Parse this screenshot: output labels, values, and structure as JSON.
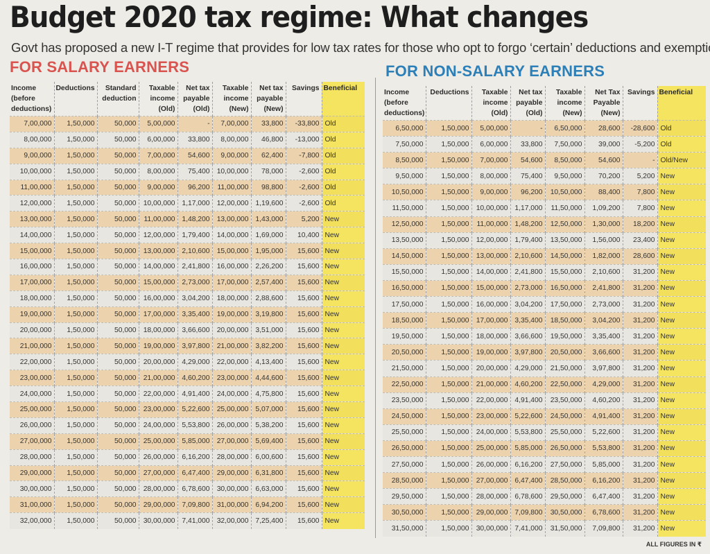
{
  "headline": "Budget 2020 tax regime: What changes",
  "subhead": "Govt has proposed a new I-T regime that provides for low tax rates for those who opt to forgo ‘certain’ deductions and exemptions",
  "salary": {
    "title": "FOR SALARY EARNERS",
    "headers": [
      "Income (before deductions)",
      "Deductions",
      "Standard deduction",
      "Taxable income (Old)",
      "Net tax payable (Old)",
      "Taxable income (New)",
      "Net tax payable (New)",
      "Savings",
      "Beneficial"
    ],
    "rows": [
      [
        "7,00,000",
        "1,50,000",
        "50,000",
        "5,00,000",
        "-",
        "7,00,000",
        "33,800",
        "-33,800",
        "Old"
      ],
      [
        "8,00,000",
        "1,50,000",
        "50,000",
        "6,00,000",
        "33,800",
        "8,00,000",
        "46,800",
        "-13,000",
        "Old"
      ],
      [
        "9,00,000",
        "1,50,000",
        "50,000",
        "7,00,000",
        "54,600",
        "9,00,000",
        "62,400",
        "-7,800",
        "Old"
      ],
      [
        "10,00,000",
        "1,50,000",
        "50,000",
        "8,00,000",
        "75,400",
        "10,00,000",
        "78,000",
        "-2,600",
        "Old"
      ],
      [
        "11,00,000",
        "1,50,000",
        "50,000",
        "9,00,000",
        "96,200",
        "11,00,000",
        "98,800",
        "-2,600",
        "Old"
      ],
      [
        "12,00,000",
        "1,50,000",
        "50,000",
        "10,00,000",
        "1,17,000",
        "12,00,000",
        "1,19,600",
        "-2,600",
        "Old"
      ],
      [
        "13,00,000",
        "1,50,000",
        "50,000",
        "11,00,000",
        "1,48,200",
        "13,00,000",
        "1,43,000",
        "5,200",
        "New"
      ],
      [
        "14,00,000",
        "1,50,000",
        "50,000",
        "12,00,000",
        "1,79,400",
        "14,00,000",
        "1,69,000",
        "10,400",
        "New"
      ],
      [
        "15,00,000",
        "1,50,000",
        "50,000",
        "13,00,000",
        "2,10,600",
        "15,00,000",
        "1,95,000",
        "15,600",
        "New"
      ],
      [
        "16,00,000",
        "1,50,000",
        "50,000",
        "14,00,000",
        "2,41,800",
        "16,00,000",
        "2,26,200",
        "15,600",
        "New"
      ],
      [
        "17,00,000",
        "1,50,000",
        "50,000",
        "15,00,000",
        "2,73,000",
        "17,00,000",
        "2,57,400",
        "15,600",
        "New"
      ],
      [
        "18,00,000",
        "1,50,000",
        "50,000",
        "16,00,000",
        "3,04,200",
        "18,00,000",
        "2,88,600",
        "15,600",
        "New"
      ],
      [
        "19,00,000",
        "1,50,000",
        "50,000",
        "17,00,000",
        "3,35,400",
        "19,00,000",
        "3,19,800",
        "15,600",
        "New"
      ],
      [
        "20,00,000",
        "1,50,000",
        "50,000",
        "18,00,000",
        "3,66,600",
        "20,00,000",
        "3,51,000",
        "15,600",
        "New"
      ],
      [
        "21,00,000",
        "1,50,000",
        "50,000",
        "19,00,000",
        "3,97,800",
        "21,00,000",
        "3,82,200",
        "15,600",
        "New"
      ],
      [
        "22,00,000",
        "1,50,000",
        "50,000",
        "20,00,000",
        "4,29,000",
        "22,00,000",
        "4,13,400",
        "15,600",
        "New"
      ],
      [
        "23,00,000",
        "1,50,000",
        "50,000",
        "21,00,000",
        "4,60,200",
        "23,00,000",
        "4,44,600",
        "15,600",
        "New"
      ],
      [
        "24,00,000",
        "1,50,000",
        "50,000",
        "22,00,000",
        "4,91,400",
        "24,00,000",
        "4,75,800",
        "15,600",
        "New"
      ],
      [
        "25,00,000",
        "1,50,000",
        "50,000",
        "23,00,000",
        "5,22,600",
        "25,00,000",
        "5,07,000",
        "15,600",
        "New"
      ],
      [
        "26,00,000",
        "1,50,000",
        "50,000",
        "24,00,000",
        "5,53,800",
        "26,00,000",
        "5,38,200",
        "15,600",
        "New"
      ],
      [
        "27,00,000",
        "1,50,000",
        "50,000",
        "25,00,000",
        "5,85,000",
        "27,00,000",
        "5,69,400",
        "15,600",
        "New"
      ],
      [
        "28,00,000",
        "1,50,000",
        "50,000",
        "26,00,000",
        "6,16,200",
        "28,00,000",
        "6,00,600",
        "15,600",
        "New"
      ],
      [
        "29,00,000",
        "1,50,000",
        "50,000",
        "27,00,000",
        "6,47,400",
        "29,00,000",
        "6,31,800",
        "15,600",
        "New"
      ],
      [
        "30,00,000",
        "1,50,000",
        "50,000",
        "28,00,000",
        "6,78,600",
        "30,00,000",
        "6,63,000",
        "15,600",
        "New"
      ],
      [
        "31,00,000",
        "1,50,000",
        "50,000",
        "29,00,000",
        "7,09,800",
        "31,00,000",
        "6,94,200",
        "15,600",
        "New"
      ],
      [
        "32,00,000",
        "1,50,000",
        "50,000",
        "30,00,000",
        "7,41,000",
        "32,00,000",
        "7,25,400",
        "15,600",
        "New"
      ]
    ]
  },
  "nonsalary": {
    "title": "FOR NON-SALARY EARNERS",
    "headers": [
      "Income (before deductions)",
      "Deductions",
      "Taxable income (Old)",
      "Net tax payable (Old)",
      "Taxable income (New)",
      "Net Tax Payable (New)",
      "Savings",
      "Beneficial"
    ],
    "rows": [
      [
        "6,50,000",
        "1,50,000",
        "5,00,000",
        "-",
        "6,50,000",
        "28,600",
        "-28,600",
        "Old"
      ],
      [
        "7,50,000",
        "1,50,000",
        "6,00,000",
        "33,800",
        "7,50,000",
        "39,000",
        "-5,200",
        "Old"
      ],
      [
        "8,50,000",
        "1,50,000",
        "7,00,000",
        "54,600",
        "8,50,000",
        "54,600",
        "-",
        "Old/New"
      ],
      [
        "9,50,000",
        "1,50,000",
        "8,00,000",
        "75,400",
        "9,50,000",
        "70,200",
        "5,200",
        "New"
      ],
      [
        "10,50,000",
        "1,50,000",
        "9,00,000",
        "96,200",
        "10,50,000",
        "88,400",
        "7,800",
        "New"
      ],
      [
        "11,50,000",
        "1,50,000",
        "10,00,000",
        "1,17,000",
        "11,50,000",
        "1,09,200",
        "7,800",
        "New"
      ],
      [
        "12,50,000",
        "1,50,000",
        "11,00,000",
        "1,48,200",
        "12,50,000",
        "1,30,000",
        "18,200",
        "New"
      ],
      [
        "13,50,000",
        "1,50,000",
        "12,00,000",
        "1,79,400",
        "13,50,000",
        "1,56,000",
        "23,400",
        "New"
      ],
      [
        "14,50,000",
        "1,50,000",
        "13,00,000",
        "2,10,600",
        "14,50,000",
        "1,82,000",
        "28,600",
        "New"
      ],
      [
        "15,50,000",
        "1,50,000",
        "14,00,000",
        "2,41,800",
        "15,50,000",
        "2,10,600",
        "31,200",
        "New"
      ],
      [
        "16,50,000",
        "1,50,000",
        "15,00,000",
        "2,73,000",
        "16,50,000",
        "2,41,800",
        "31,200",
        "New"
      ],
      [
        "17,50,000",
        "1,50,000",
        "16,00,000",
        "3,04,200",
        "17,50,000",
        "2,73,000",
        "31,200",
        "New"
      ],
      [
        "18,50,000",
        "1,50,000",
        "17,00,000",
        "3,35,400",
        "18,50,000",
        "3,04,200",
        "31,200",
        "New"
      ],
      [
        "19,50,000",
        "1,50,000",
        "18,00,000",
        "3,66,600",
        "19,50,000",
        "3,35,400",
        "31,200",
        "New"
      ],
      [
        "20,50,000",
        "1,50,000",
        "19,00,000",
        "3,97,800",
        "20,50,000",
        "3,66,600",
        "31,200",
        "New"
      ],
      [
        "21,50,000",
        "1,50,000",
        "20,00,000",
        "4,29,000",
        "21,50,000",
        "3,97,800",
        "31,200",
        "New"
      ],
      [
        "22,50,000",
        "1,50,000",
        "21,00,000",
        "4,60,200",
        "22,50,000",
        "4,29,000",
        "31,200",
        "New"
      ],
      [
        "23,50,000",
        "1,50,000",
        "22,00,000",
        "4,91,400",
        "23,50,000",
        "4,60,200",
        "31,200",
        "New"
      ],
      [
        "24,50,000",
        "1,50,000",
        "23,00,000",
        "5,22,600",
        "24,50,000",
        "4,91,400",
        "31,200",
        "New"
      ],
      [
        "25,50,000",
        "1,50,000",
        "24,00,000",
        "5,53,800",
        "25,50,000",
        "5,22,600",
        "31,200",
        "New"
      ],
      [
        "26,50,000",
        "1,50,000",
        "25,00,000",
        "5,85,000",
        "26,50,000",
        "5,53,800",
        "31,200",
        "New"
      ],
      [
        "27,50,000",
        "1,50,000",
        "26,00,000",
        "6,16,200",
        "27,50,000",
        "5,85,000",
        "31,200",
        "New"
      ],
      [
        "28,50,000",
        "1,50,000",
        "27,00,000",
        "6,47,400",
        "28,50,000",
        "6,16,200",
        "31,200",
        "New"
      ],
      [
        "29,50,000",
        "1,50,000",
        "28,00,000",
        "6,78,600",
        "29,50,000",
        "6,47,400",
        "31,200",
        "New"
      ],
      [
        "30,50,000",
        "1,50,000",
        "29,00,000",
        "7,09,800",
        "30,50,000",
        "6,78,600",
        "31,200",
        "New"
      ],
      [
        "31,50,000",
        "1,50,000",
        "30,00,000",
        "7,41,000",
        "31,50,000",
        "7,09,800",
        "31,200",
        "New"
      ]
    ]
  },
  "footnote": "ALL FIGURES IN ₹"
}
